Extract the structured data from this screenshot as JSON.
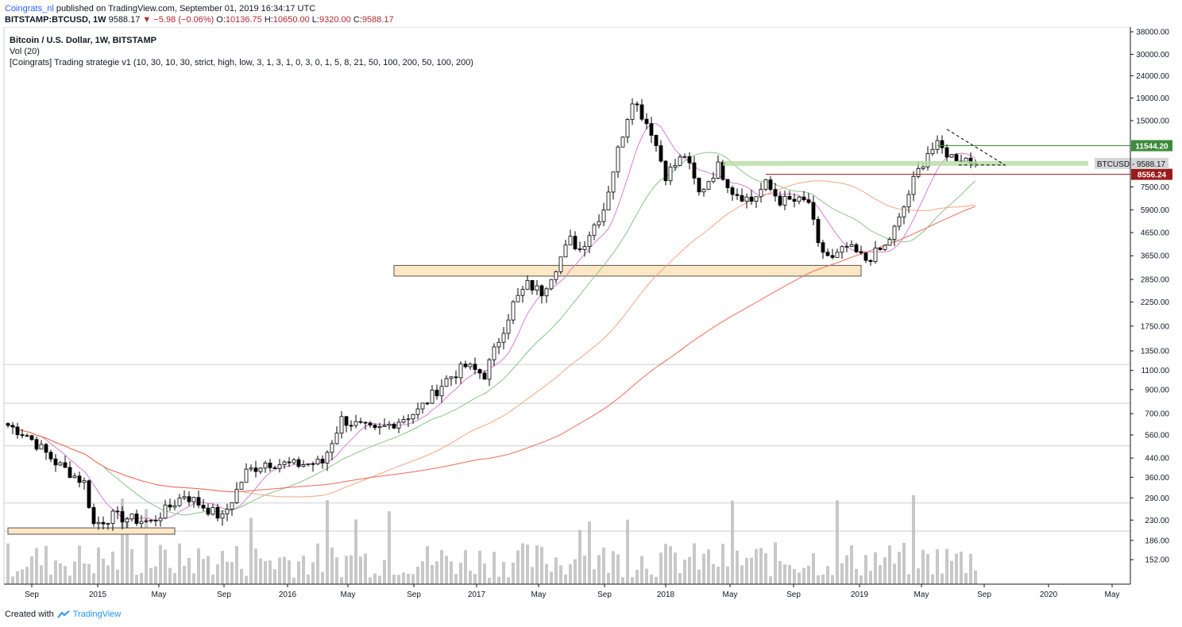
{
  "header": {
    "author": "Coingrats_nl",
    "published": " published on TradingView.com, September 01, 2019 16:34:17 UTC"
  },
  "quote": {
    "symbol": "BITSTAMP:BTCUSD, 1W",
    "last": "9588.17",
    "change_arrow": "▼",
    "change": "−5.98 (−0.06%)",
    "o_label": "O:",
    "o": "10136.75",
    "h_label": "H:",
    "h": "10650.00",
    "l_label": "L:",
    "l": "9320.00",
    "c_label": "C:",
    "c": "9588.17"
  },
  "legend": {
    "title": "Bitcoin / U.S. Dollar, 1W, BITSTAMP",
    "vol": "Vol (20)",
    "strategy": "[Coingrats] Trading strategie v1 (10, 30, 10, 30, strict, high, low, 3, 1, 3, 1, 0, 3, 0, 1, 5, 8, 21, 50, 100, 200, 50, 100, 200)"
  },
  "footer": {
    "created": "Created with",
    "brand": "TradingView"
  },
  "colors": {
    "up": "#ffffff",
    "down": "#000000",
    "wick": "#000000",
    "ma_pink": "#d67fd6",
    "ma_green": "#8bc38b",
    "ma_orange": "#f4a582",
    "ma_red": "#ef6a5a",
    "zone_fill": "#fde7c4",
    "zone_stroke": "#555555",
    "resistance": "#3d8b3d",
    "support": "#9c1a1a",
    "band": "#b7dca3"
  },
  "chart_data": {
    "type": "candlestick",
    "scale": "log",
    "ylim": [
      130,
      38000
    ],
    "y_ticks": [
      "38000.00",
      "30000.00",
      "24000.00",
      "19000.00",
      "15000.00",
      "11544.20",
      "9588.17",
      "8556.24",
      "7500.00",
      "5900.00",
      "4650.00",
      "3650.00",
      "2850.00",
      "2250.00",
      "1750.00",
      "1350.00",
      "1100.00",
      "900.00",
      "700.00",
      "560.00",
      "440.00",
      "360.00",
      "290.00",
      "230.00",
      "186.00",
      "152.00"
    ],
    "x_ticks": [
      "Sep",
      "2015",
      "May",
      "Sep",
      "2016",
      "May",
      "Sep",
      "2017",
      "May",
      "Sep",
      "2018",
      "May",
      "Sep",
      "2019",
      "May",
      "Sep",
      "2020",
      "May"
    ],
    "price_labels": {
      "resistance": "11544.20",
      "last_symbol": "BTCUSD",
      "last": "9588.17",
      "support": "8556.24"
    },
    "close_anchors": [
      {
        "week": 0,
        "close": 620
      },
      {
        "week": 4,
        "close": 560
      },
      {
        "week": 10,
        "close": 420
      },
      {
        "week": 16,
        "close": 340
      },
      {
        "week": 18,
        "close": 220
      },
      {
        "week": 22,
        "close": 240
      },
      {
        "week": 30,
        "close": 225
      },
      {
        "week": 37,
        "close": 300
      },
      {
        "week": 45,
        "close": 235
      },
      {
        "week": 50,
        "close": 380
      },
      {
        "week": 54,
        "close": 420
      },
      {
        "week": 60,
        "close": 410
      },
      {
        "week": 66,
        "close": 420
      },
      {
        "week": 70,
        "close": 660
      },
      {
        "week": 77,
        "close": 580
      },
      {
        "week": 86,
        "close": 720
      },
      {
        "week": 92,
        "close": 1000
      },
      {
        "week": 96,
        "close": 1150
      },
      {
        "week": 100,
        "close": 1050
      },
      {
        "week": 106,
        "close": 2200
      },
      {
        "week": 109,
        "close": 2700
      },
      {
        "week": 112,
        "close": 2500
      },
      {
        "week": 118,
        "close": 4300
      },
      {
        "week": 120,
        "close": 3900
      },
      {
        "week": 125,
        "close": 6000
      },
      {
        "week": 128,
        "close": 11000
      },
      {
        "week": 131,
        "close": 19000
      },
      {
        "week": 135,
        "close": 13500
      },
      {
        "week": 138,
        "close": 8500
      },
      {
        "week": 142,
        "close": 10500
      },
      {
        "week": 145,
        "close": 7000
      },
      {
        "week": 149,
        "close": 9300
      },
      {
        "week": 152,
        "close": 7200
      },
      {
        "week": 156,
        "close": 6500
      },
      {
        "week": 159,
        "close": 7700
      },
      {
        "week": 162,
        "close": 6500
      },
      {
        "week": 168,
        "close": 6400
      },
      {
        "week": 170,
        "close": 4000
      },
      {
        "week": 173,
        "close": 3500
      },
      {
        "week": 176,
        "close": 4000
      },
      {
        "week": 180,
        "close": 3500
      },
      {
        "week": 184,
        "close": 4000
      },
      {
        "week": 187,
        "close": 5300
      },
      {
        "week": 190,
        "close": 8000
      },
      {
        "week": 193,
        "close": 10800
      },
      {
        "week": 195,
        "close": 11500
      },
      {
        "week": 198,
        "close": 10300
      },
      {
        "week": 201,
        "close": 10100
      },
      {
        "week": 203,
        "close": 9588
      }
    ],
    "zones": [
      {
        "name": "support-zone-2015",
        "from_week": 0,
        "to_week": 35,
        "low": 200,
        "high": 212
      },
      {
        "name": "support-zone-2018",
        "from_week": 81,
        "to_week": 179,
        "low": 2950,
        "high": 3300
      }
    ],
    "levels": [
      {
        "name": "resistance-line",
        "price": 11544.2,
        "from_week": 195
      },
      {
        "name": "support-line",
        "price": 8556.24,
        "from_week": 151
      }
    ]
  }
}
